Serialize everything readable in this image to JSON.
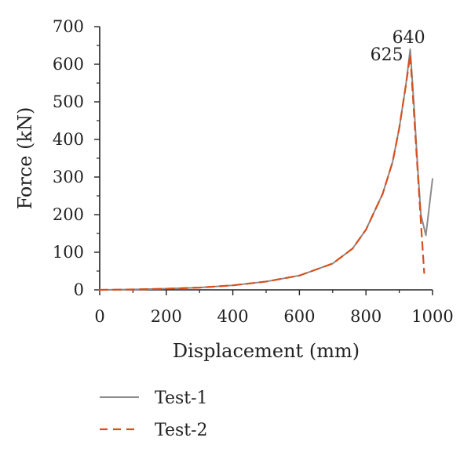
{
  "chart_data": {
    "type": "line",
    "title": "",
    "xlabel": "Displacement (mm)",
    "ylabel": "Force (kN)",
    "xlim": [
      0,
      1000
    ],
    "ylim": [
      0,
      700
    ],
    "xticks": [
      0,
      200,
      400,
      600,
      800,
      1000
    ],
    "yticks": [
      0,
      100,
      200,
      300,
      400,
      500,
      600,
      700
    ],
    "x_tick_labels": [
      "0",
      "200",
      "400",
      "600",
      "800",
      "1000"
    ],
    "y_tick_labels": [
      "0",
      "100",
      "200",
      "300",
      "400",
      "500",
      "600",
      "700"
    ],
    "grid": false,
    "legend_position": "bottom-left",
    "series": [
      {
        "name": "Test-1",
        "color": "#8c8c8c",
        "style": "solid",
        "x": [
          0,
          100,
          200,
          300,
          400,
          500,
          600,
          700,
          760,
          800,
          850,
          880,
          900,
          920,
          933,
          945,
          955,
          965,
          980,
          1000
        ],
        "y": [
          0,
          1,
          3,
          6,
          12,
          22,
          38,
          70,
          110,
          160,
          255,
          340,
          430,
          545,
          640,
          480,
          330,
          200,
          145,
          295
        ]
      },
      {
        "name": "Test-2",
        "color": "#d94f1d",
        "style": "dashed",
        "x": [
          0,
          100,
          200,
          300,
          400,
          500,
          600,
          700,
          760,
          800,
          850,
          880,
          900,
          920,
          933,
          945,
          955,
          965,
          975
        ],
        "y": [
          0,
          1,
          3,
          6,
          12,
          22,
          38,
          70,
          110,
          160,
          255,
          340,
          430,
          545,
          625,
          460,
          320,
          180,
          45
        ]
      }
    ],
    "annotations": [
      {
        "text": "640",
        "x": 933,
        "y": 640
      },
      {
        "text": "625",
        "x": 933,
        "y": 625
      }
    ]
  }
}
